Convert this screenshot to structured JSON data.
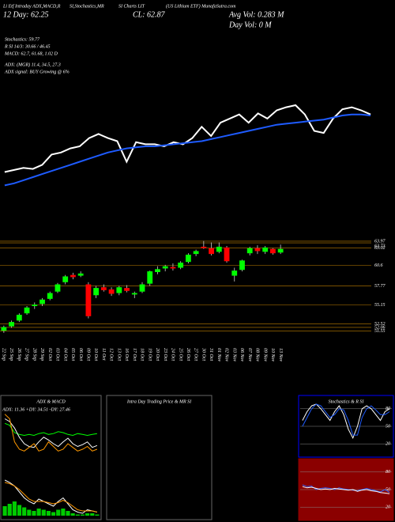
{
  "header": {
    "line1": [
      "Li Etf Intraday ADX,MACD,R",
      "SI,Stochastics,MR",
      "SI Charts LIT",
      "(US Lithium ETF) MunafaSutra.com"
    ],
    "day": "12 Day: 62.25",
    "close": "CL: 62.87",
    "avg_vol": "Avg Vol: 0.283 M",
    "day_vol": "Day Vol: 0 M",
    "stochastics": "Stochastics: 59.77",
    "rsi": "R SI 14/3: 30.66 / 46.45",
    "macd": "MACD: 62.7, 61.68, 1.02 D",
    "adx": "ADX: (MGR) 11.4, 34.5, 27.3",
    "adx_signal": "ADX signal: BUY Growing @ 6%"
  },
  "chart_data": [
    {
      "type": "line",
      "ylim": [
        0,
        100
      ],
      "series": [
        {
          "name": "Price trend",
          "color": "#ffffff",
          "values": [
            25,
            27,
            29,
            28,
            32,
            42,
            44,
            48,
            50,
            58,
            62,
            58,
            55,
            35,
            54,
            52,
            52,
            50,
            54,
            52,
            58,
            69,
            60,
            73,
            77,
            81,
            73,
            82,
            77,
            85,
            88,
            90,
            81,
            65,
            63,
            77,
            86,
            88,
            85,
            81
          ]
        },
        {
          "name": "Average",
          "color": "#1e5bff",
          "values": [
            12,
            14,
            17,
            20,
            23,
            26,
            29,
            32,
            35,
            38,
            41,
            44,
            46,
            48,
            49,
            50,
            50,
            51,
            52,
            53,
            54,
            55,
            57,
            59,
            61,
            63,
            65,
            67,
            69,
            71,
            72,
            73,
            74,
            75,
            76,
            78,
            80,
            81,
            81,
            80
          ]
        }
      ]
    },
    {
      "type": "candlestick",
      "ylim": [
        50.3,
        65.6
      ],
      "yticks": [
        63.97,
        63.73,
        63.02,
        60.6,
        57.77,
        55.15,
        52.52,
        52.06,
        51.55
      ],
      "up_color": "#00ff00",
      "down_color": "#ff0000",
      "tick_color": "#c08000",
      "categories": [
        "22 Sep",
        "25 Sep",
        "26 Sep",
        "27 Sep",
        "28 Sep",
        "29 Sep",
        "02 Oct",
        "03 Oct",
        "04 Oct",
        "05 Oct",
        "06 Oct",
        "09 Oct",
        "10 Oct",
        "11 Oct",
        "12 Oct",
        "13 Oct",
        "16 Oct",
        "17 Oct",
        "18 Oct",
        "19 Oct",
        "20 Oct",
        "23 Oct",
        "24 Oct",
        "25 Oct",
        "26 Oct",
        "27 Oct",
        "30 Oct",
        "31 Oct",
        "01 Nov",
        "02 Nov",
        "03 Nov",
        "06 Nov",
        "07 Nov",
        "08 Nov",
        "09 Nov",
        "10 Nov",
        "13 Nov"
      ],
      "open": [
        51.6,
        52.2,
        53.0,
        54.0,
        55.0,
        55.3,
        56.0,
        57.0,
        58.3,
        59.3,
        59.2,
        58.0,
        56.5,
        57.6,
        57.3,
        56.8,
        57.5,
        56.6,
        57.0,
        58.1,
        59.7,
        60.2,
        60.4,
        60.3,
        61.1,
        62.2,
        63.2,
        63.0,
        62.5,
        63.1,
        59.2,
        60.0,
        62.3,
        63.0,
        62.5,
        62.9,
        62.4
      ],
      "high": [
        52.3,
        53.0,
        54.0,
        55.0,
        55.5,
        56.1,
        57.0,
        58.2,
        59.3,
        59.6,
        59.8,
        58.3,
        57.8,
        58.0,
        57.6,
        57.8,
        57.9,
        57.0,
        58.3,
        59.9,
        60.5,
        60.7,
        60.9,
        61.2,
        62.3,
        62.8,
        64.0,
        63.8,
        63.8,
        63.3,
        60.3,
        61.4,
        63.2,
        63.4,
        63.3,
        63.0,
        63.5
      ],
      "low": [
        51.3,
        52.0,
        52.8,
        53.8,
        54.6,
        55.0,
        55.8,
        56.8,
        58.0,
        58.7,
        59.0,
        53.3,
        56.1,
        57.0,
        56.4,
        56.5,
        56.9,
        56.1,
        56.8,
        57.8,
        59.4,
        59.8,
        59.9,
        60.1,
        60.9,
        61.9,
        62.9,
        62.0,
        62.3,
        61.0,
        58.4,
        59.8,
        62.0,
        62.2,
        62.2,
        62.1,
        62.2
      ],
      "close": [
        52.1,
        52.8,
        53.8,
        54.8,
        55.2,
        55.9,
        56.8,
        58.0,
        59.1,
        59.0,
        59.5,
        53.6,
        57.5,
        57.2,
        56.7,
        57.6,
        57.1,
        56.8,
        58.0,
        59.8,
        60.1,
        60.5,
        60.2,
        61.0,
        62.1,
        62.6,
        63.0,
        62.2,
        63.2,
        61.2,
        59.9,
        61.3,
        63.0,
        62.6,
        63.1,
        62.3,
        62.9
      ]
    },
    {
      "type": "line",
      "title": "ADX & MACD",
      "subtitle": "ADX: 11.36 +DY: 34.51 -DY: 27.46",
      "ylim": [
        0,
        60
      ],
      "series": [
        {
          "name": "ADX",
          "color": "#00ff00",
          "values": [
            40,
            38,
            30,
            28,
            27,
            28,
            27,
            29,
            30,
            28,
            29,
            31,
            30,
            28,
            27,
            29,
            28,
            27,
            28,
            29
          ]
        },
        {
          "name": "+DY",
          "color": "#ffffff",
          "values": [
            45,
            42,
            35,
            25,
            18,
            15,
            14,
            20,
            25,
            22,
            18,
            15,
            20,
            24,
            18,
            15,
            17,
            20,
            14,
            16
          ]
        },
        {
          "name": "-DY",
          "color": "#ff9900",
          "values": [
            50,
            45,
            20,
            12,
            10,
            14,
            18,
            10,
            12,
            20,
            15,
            10,
            12,
            18,
            14,
            10,
            12,
            15,
            10,
            12
          ]
        }
      ]
    },
    {
      "type": "bar",
      "ylim": [
        0,
        40
      ],
      "color": "#00cc00",
      "values": [
        8,
        10,
        12,
        9,
        7,
        5,
        4,
        6,
        5,
        4,
        3,
        5,
        6,
        4,
        2,
        1,
        1,
        2,
        2,
        1
      ],
      "series": [
        {
          "name": "MACD",
          "color": "#ffffff",
          "values": [
            30,
            28,
            25,
            20,
            15,
            12,
            10,
            14,
            12,
            10,
            8,
            12,
            15,
            10,
            5,
            3,
            2,
            5,
            4,
            3
          ]
        },
        {
          "name": "Signal",
          "color": "#ff9900",
          "values": [
            28,
            27,
            25,
            22,
            18,
            14,
            12,
            12,
            12,
            11,
            10,
            11,
            13,
            11,
            8,
            5,
            4,
            4,
            4,
            3
          ]
        }
      ]
    },
    {
      "type": "line",
      "title": "Intra Day Trading Price & MR SI",
      "ylim": [
        0,
        100
      ],
      "series": []
    },
    {
      "type": "line",
      "title": "Stochastics & R SI",
      "ylim": [
        0,
        100
      ],
      "yticks": [
        80,
        50,
        20
      ],
      "background": "#000000",
      "series": [
        {
          "name": "%K",
          "color": "#ffffff",
          "values": [
            60,
            75,
            85,
            88,
            80,
            70,
            60,
            75,
            85,
            70,
            45,
            30,
            50,
            80,
            85,
            80,
            70,
            60,
            75,
            80
          ]
        },
        {
          "name": "%D",
          "color": "#1e5bff",
          "values": [
            50,
            65,
            80,
            88,
            85,
            75,
            65,
            70,
            80,
            78,
            60,
            35,
            35,
            65,
            80,
            85,
            78,
            70,
            70,
            75
          ]
        }
      ]
    },
    {
      "type": "line",
      "ylim": [
        0,
        100
      ],
      "yticks": [
        80,
        50,
        20
      ],
      "background": "#8b0000",
      "series": [
        {
          "name": "RSI",
          "color": "#3366ff",
          "values": [
            58,
            55,
            56,
            50,
            52,
            53,
            52,
            50,
            53,
            51,
            50,
            49,
            48,
            50,
            52,
            50,
            48,
            46,
            50,
            45
          ]
        },
        {
          "name": "MRSI",
          "color": "#ffffff",
          "values": [
            55,
            53,
            54,
            52,
            50,
            51,
            50,
            52,
            51,
            50,
            49,
            50,
            47,
            49,
            50,
            48,
            47,
            45,
            44,
            43
          ]
        }
      ]
    }
  ]
}
